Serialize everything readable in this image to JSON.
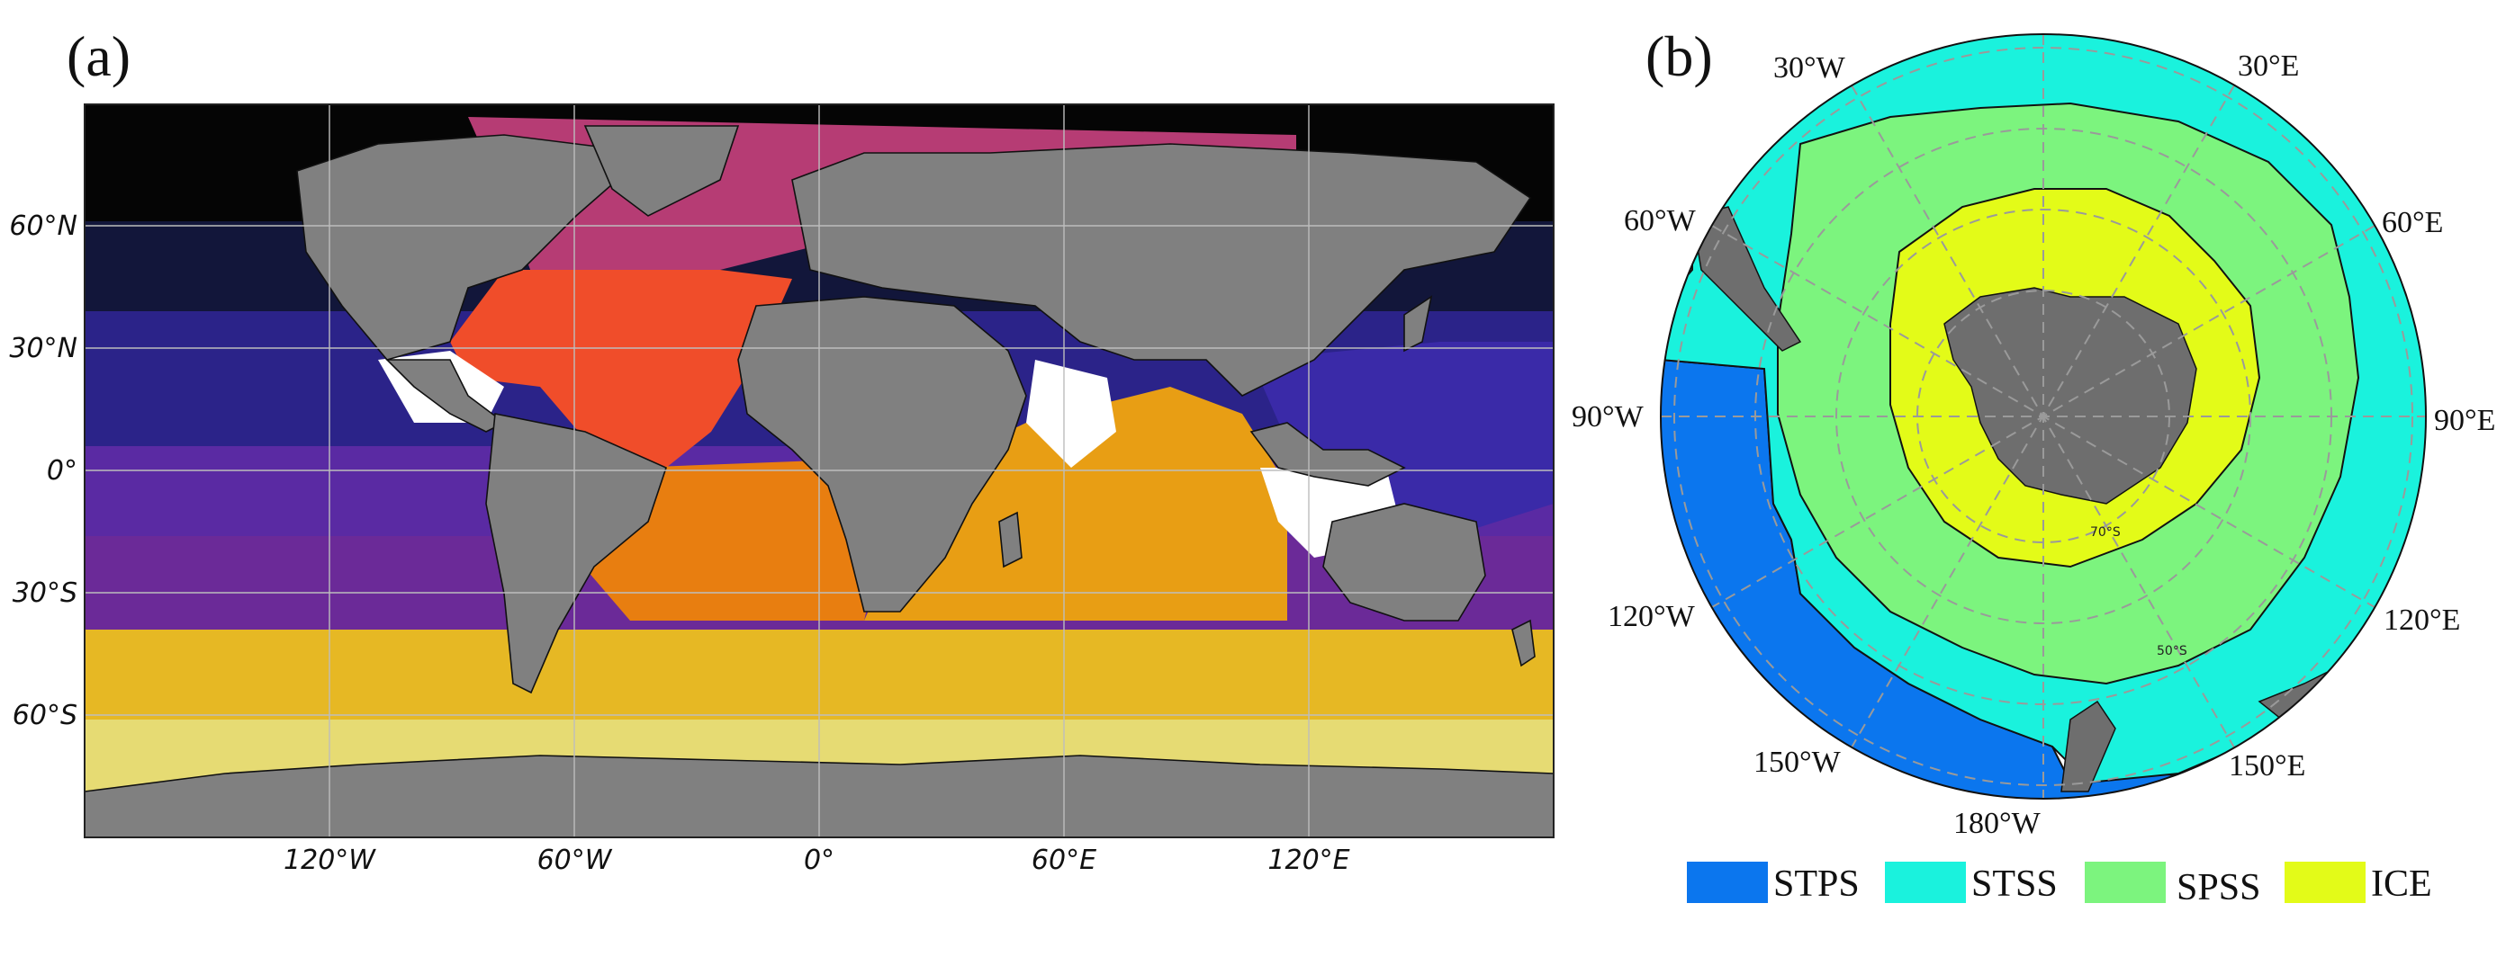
{
  "panels": {
    "a": {
      "label": "(a)",
      "lon_ticks": [
        "120°W",
        "60°W",
        "0°",
        "60°E",
        "120°E"
      ],
      "lat_ticks": [
        "60°N",
        "30°N",
        "0°",
        "30°S",
        "60°S"
      ]
    },
    "b": {
      "label": "(b)",
      "meridian_labels": [
        "30°W",
        "30°E",
        "60°W",
        "60°E",
        "90°W",
        "90°E",
        "120°W",
        "120°E",
        "150°W",
        "150°E",
        "180°W"
      ],
      "circle_labels": [
        "70°S",
        "50°S"
      ],
      "legend": [
        {
          "name": "STPS",
          "color": "#0b76ee"
        },
        {
          "name": "STSS",
          "color": "#1af2dd"
        },
        {
          "name": "SPSS",
          "color": "#7cf47e"
        },
        {
          "name": "ICE",
          "color": "#e3fb18"
        }
      ]
    }
  },
  "colors": {
    "land": "#808080",
    "unclassified": "#ffffff",
    "arctic_black": "#050505",
    "north_pacific_dark": "#12163a",
    "pacific_blue": "#2b2389",
    "pacific_purple": "#5a2aa3",
    "south_pacific_purple": "#6b2a98",
    "north_atlantic_magenta": "#b63c74",
    "north_atlantic_red": "#f04d2a",
    "south_atlantic_orange": "#e87e10",
    "indian_orange": "#e89e14",
    "southern_gold": "#e6b824",
    "southern_light": "#e6db73",
    "stps": "#0b76ee",
    "stss": "#1af2dd",
    "spss": "#7cf47e",
    "ice": "#e3fb18"
  }
}
